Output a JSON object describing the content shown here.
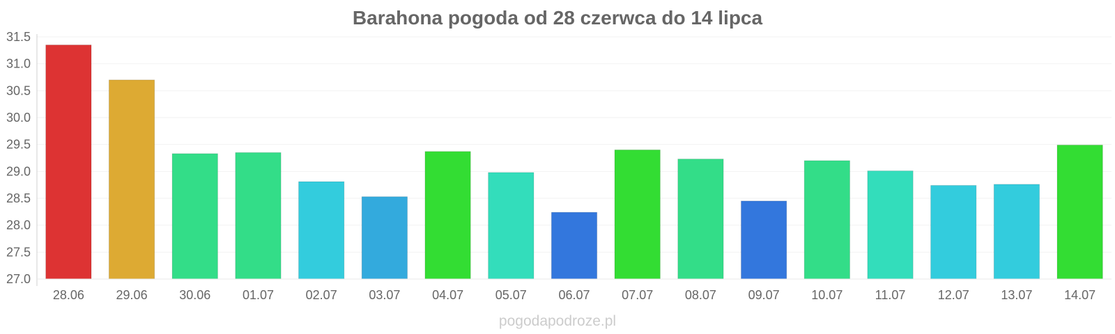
{
  "chart_data": {
    "type": "bar",
    "title": "Barahona pogoda od 28 czerwca do 14 lipca",
    "xlabel": "",
    "ylabel": "",
    "ylim": [
      27.0,
      31.5
    ],
    "yticks": [
      "27.0",
      "27.5",
      "28.0",
      "28.5",
      "29.0",
      "29.5",
      "30.0",
      "30.5",
      "31.0",
      "31.5"
    ],
    "grid": true,
    "legend": "none",
    "categories": [
      "28.06",
      "29.06",
      "30.06",
      "01.07",
      "02.07",
      "03.07",
      "04.07",
      "05.07",
      "06.07",
      "07.07",
      "08.07",
      "09.07",
      "10.07",
      "11.07",
      "12.07",
      "13.07",
      "14.07"
    ],
    "values": [
      31.35,
      30.7,
      29.33,
      29.35,
      28.81,
      28.53,
      29.37,
      28.98,
      28.24,
      29.4,
      29.23,
      28.45,
      29.2,
      29.01,
      28.74,
      28.76,
      29.49
    ],
    "colors": [
      "#dd3333",
      "#ddaa33",
      "#33dd88",
      "#33dd88",
      "#33ccdd",
      "#33aadd",
      "#33dd33",
      "#33ddbb",
      "#3377dd",
      "#33dd33",
      "#33dd88",
      "#3377dd",
      "#33dd88",
      "#33ddbb",
      "#33ccdd",
      "#33ccdd",
      "#33dd33"
    ]
  },
  "watermark": "pogodapodroze.pl"
}
